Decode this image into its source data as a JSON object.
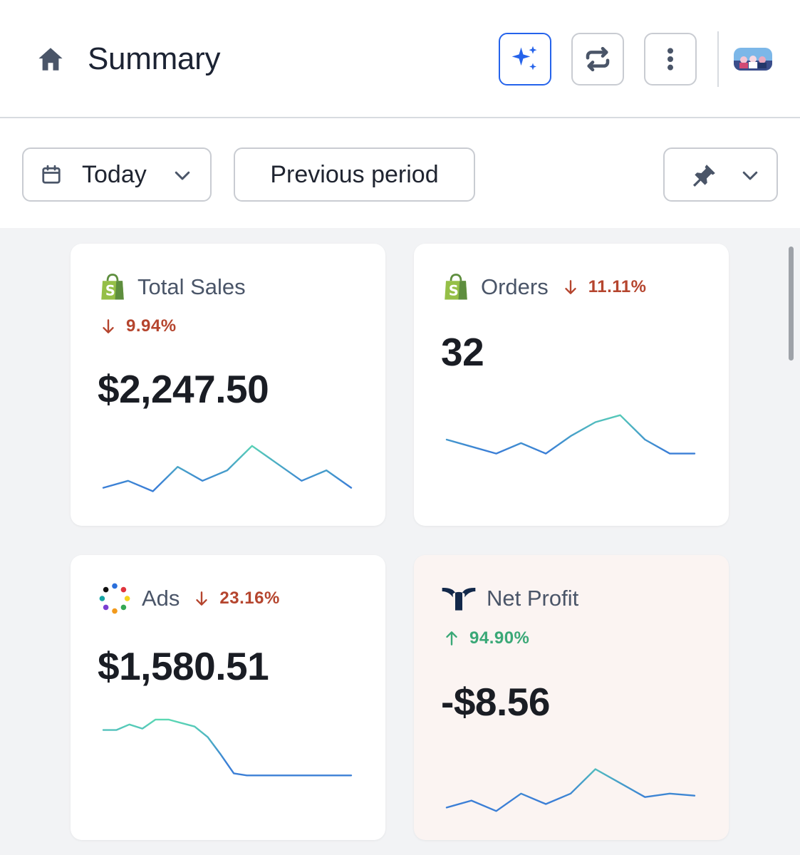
{
  "header": {
    "title": "Summary",
    "buttons": {
      "ai": "sparkles-icon",
      "sync": "sync-icon",
      "more": "more-vertical-icon"
    }
  },
  "filters": {
    "date_label": "Today",
    "compare_label": "Previous period"
  },
  "colors": {
    "accent": "#2563eb",
    "down": "#b5452e",
    "up": "#3aa877",
    "spark_start": "#3b7fd6",
    "spark_end": "#5ee0b0"
  },
  "cards": [
    {
      "title": "Total Sales",
      "source_icon": "shopify-bag-icon",
      "change_direction": "down",
      "change": "9.94%",
      "value": "$2,247.50",
      "chart_data": {
        "type": "line",
        "values": [
          3,
          4,
          2.5,
          6,
          4,
          5.5,
          9,
          6.5,
          4,
          5.5,
          3
        ]
      }
    },
    {
      "title": "Orders",
      "source_icon": "shopify-bag-icon",
      "change_direction": "down",
      "change": "11.11%",
      "value": "32",
      "chart_data": {
        "type": "line",
        "values": [
          5,
          4,
          3,
          4.5,
          3,
          5.5,
          7.5,
          8.5,
          5,
          3,
          3
        ]
      }
    },
    {
      "title": "Ads",
      "source_icon": "ads-dots-icon",
      "change_direction": "down",
      "change": "23.16%",
      "value": "$1,580.51",
      "chart_data": {
        "type": "line",
        "values": [
          8,
          8,
          8.8,
          8.2,
          9.5,
          9.5,
          9,
          8.5,
          7,
          4.5,
          1.8,
          1.5,
          1.5,
          1.5,
          1.5,
          1.5,
          1.5,
          1.5,
          1.5,
          1.5
        ]
      }
    },
    {
      "title": "Net Profit",
      "source_icon": "triple-whale-icon",
      "change_direction": "up",
      "change": "94.90%",
      "value": "-$8.56",
      "chart_data": {
        "type": "line",
        "values": [
          2,
          3,
          1.5,
          4,
          2.5,
          4,
          7.5,
          5.5,
          3.5,
          4,
          3.7
        ]
      }
    }
  ]
}
